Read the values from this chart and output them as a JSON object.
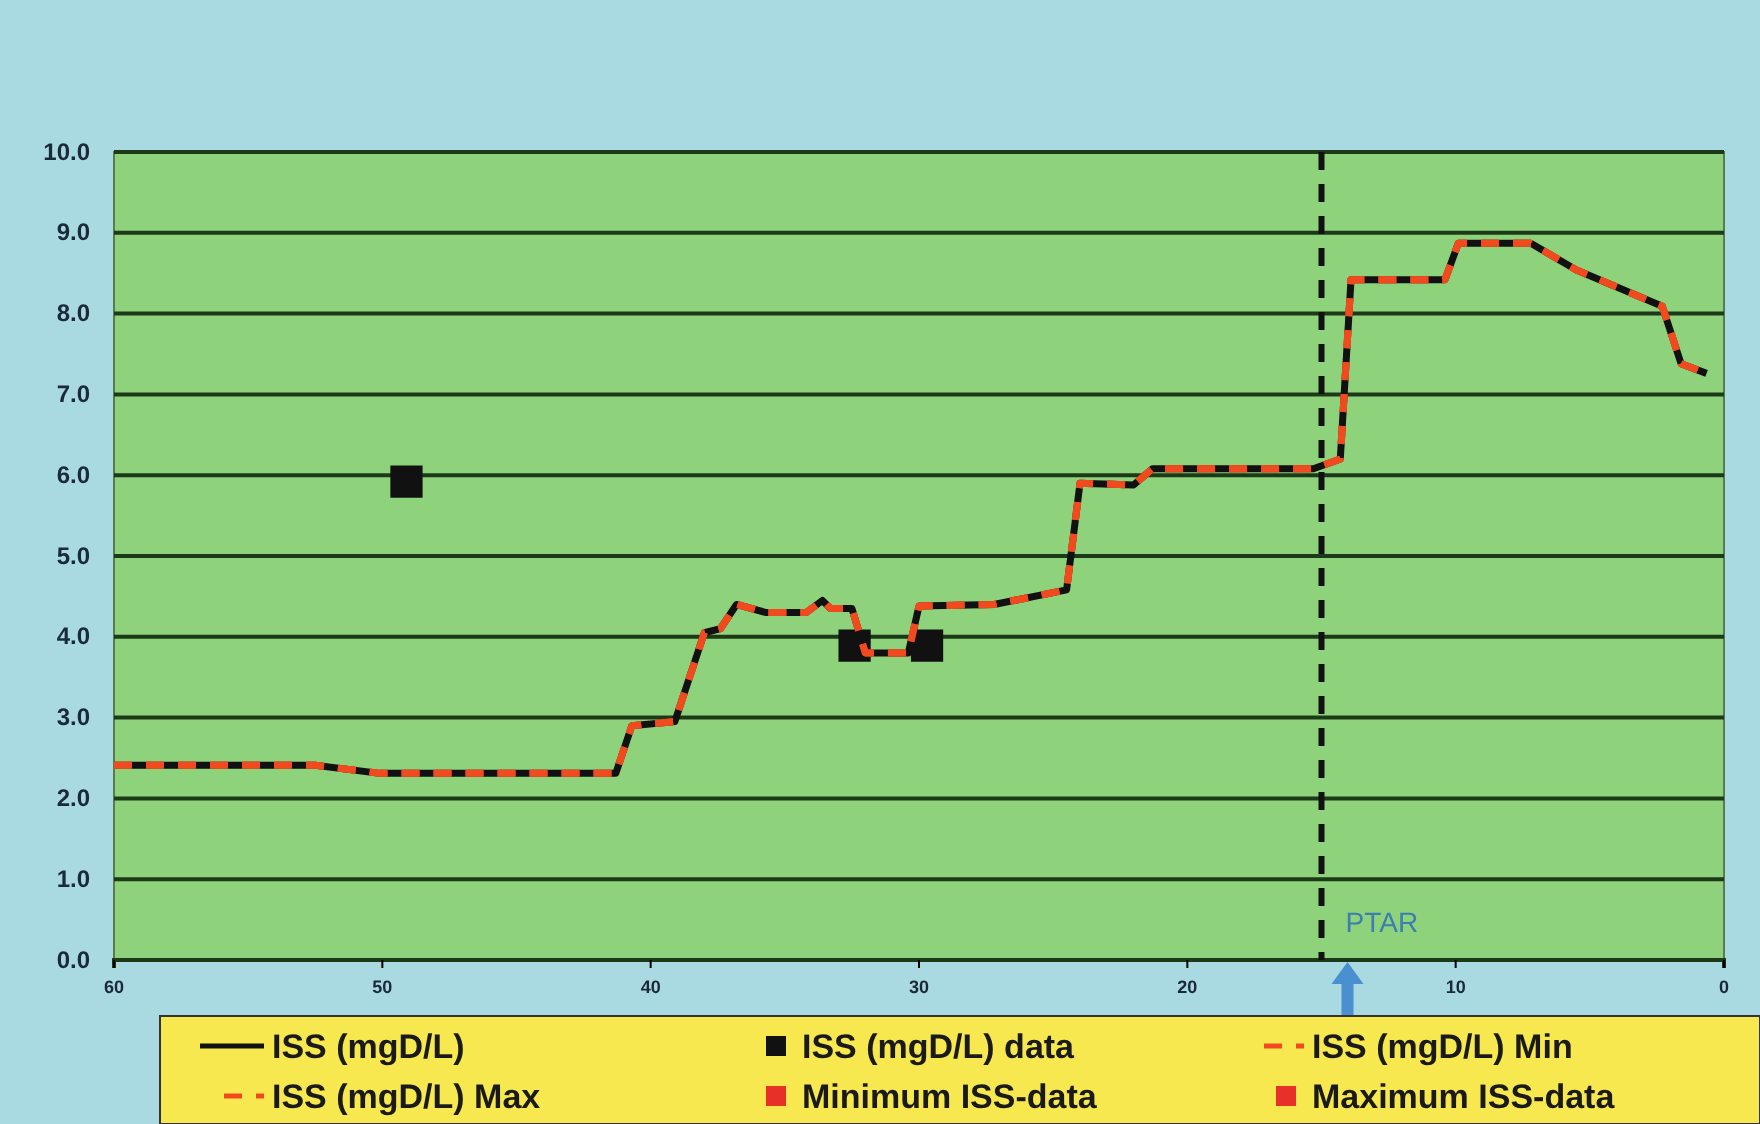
{
  "chart_data": {
    "type": "line",
    "x": [
      60,
      52.5,
      50.1,
      41.3,
      40.7,
      39.1,
      38.0,
      37.4,
      36.8,
      35.7,
      34.2,
      33.6,
      33.3,
      32.5,
      32.0,
      30.4,
      30.0,
      27.2,
      24.5,
      24.0,
      22.0,
      21.3,
      15.3,
      14.3,
      13.9,
      10.4,
      9.9,
      7.2,
      5.5,
      2.3,
      1.6,
      0.65
    ],
    "series": [
      {
        "name": "ISS (mgD/L)",
        "color": "#111111",
        "line_style": "solid",
        "values": [
          2.41,
          2.41,
          2.31,
          2.31,
          2.9,
          2.95,
          4.05,
          4.1,
          4.4,
          4.3,
          4.3,
          4.45,
          4.35,
          4.35,
          3.8,
          3.8,
          4.38,
          4.4,
          4.58,
          5.9,
          5.88,
          6.08,
          6.08,
          6.2,
          8.42,
          8.42,
          8.87,
          8.87,
          8.54,
          8.09,
          7.38,
          7.26
        ]
      },
      {
        "name": "ISS (mgD/L) data",
        "type": "scatter",
        "marker": "square",
        "color": "#111111",
        "x": [
          49.1,
          32.4,
          29.7
        ],
        "values": [
          5.92,
          3.89,
          3.89
        ]
      },
      {
        "name": "ISS (mgD/L) Min",
        "color": "#f04a1e",
        "line_style": "dashed",
        "values": [
          2.41,
          2.41,
          2.31,
          2.31,
          2.9,
          2.95,
          4.05,
          4.1,
          4.4,
          4.3,
          4.3,
          4.45,
          4.35,
          4.35,
          3.8,
          3.8,
          4.38,
          4.4,
          4.58,
          5.9,
          5.88,
          6.08,
          6.08,
          6.2,
          8.42,
          8.42,
          8.87,
          8.87,
          8.54,
          8.09,
          7.38,
          7.26
        ]
      },
      {
        "name": "ISS (mgD/L) Max",
        "color": "#f04a1e",
        "line_style": "dashed",
        "values": [
          2.41,
          2.41,
          2.31,
          2.31,
          2.9,
          2.95,
          4.05,
          4.1,
          4.4,
          4.3,
          4.3,
          4.45,
          4.35,
          4.35,
          3.8,
          3.8,
          4.38,
          4.4,
          4.58,
          5.9,
          5.88,
          6.08,
          6.08,
          6.2,
          8.42,
          8.42,
          8.87,
          8.87,
          8.54,
          8.09,
          7.38,
          7.26
        ]
      },
      {
        "name": "Minimum ISS-data",
        "type": "scatter",
        "marker": "square",
        "color": "#e8302a",
        "values": [
          null,
          null,
          null,
          null,
          null,
          null,
          null,
          null,
          null,
          null,
          null,
          null,
          null,
          null,
          null,
          null,
          null,
          null,
          null,
          null,
          null,
          null,
          null,
          null,
          null,
          null,
          null,
          null,
          null,
          null,
          null,
          null
        ]
      },
      {
        "name": "Maximum ISS-data",
        "type": "scatter",
        "marker": "square",
        "color": "#e8302a",
        "values": [
          null,
          null,
          null,
          null,
          null,
          null,
          null,
          null,
          null,
          null,
          null,
          null,
          null,
          null,
          null,
          null,
          null,
          null,
          null,
          null,
          null,
          null,
          null,
          null,
          null,
          null,
          null,
          null,
          null,
          null,
          null,
          null
        ]
      }
    ],
    "xlim": [
      60,
      0
    ],
    "xticks": [
      60,
      50,
      40,
      30,
      20,
      10,
      0
    ],
    "ylim": [
      0,
      10
    ],
    "yticks": [
      {
        "value": 0,
        "label": "0.0"
      },
      {
        "value": 1,
        "label": "1.0"
      },
      {
        "value": 2,
        "label": "2.0"
      },
      {
        "value": 3,
        "label": "3.0"
      },
      {
        "value": 4,
        "label": "4.0"
      },
      {
        "value": 5,
        "label": "5.0"
      },
      {
        "value": 6,
        "label": "6.0"
      },
      {
        "value": 7,
        "label": "7.0"
      },
      {
        "value": 8,
        "label": "8.0"
      },
      {
        "value": 9,
        "label": "9.0"
      },
      {
        "value": 10,
        "label": "10.0"
      }
    ],
    "ref_lines": [
      {
        "axis": "x",
        "value": 15,
        "label": "PTAR",
        "color": "#111111",
        "line_style": "dashed"
      }
    ],
    "grid": "y",
    "legend": "bottom"
  }
}
